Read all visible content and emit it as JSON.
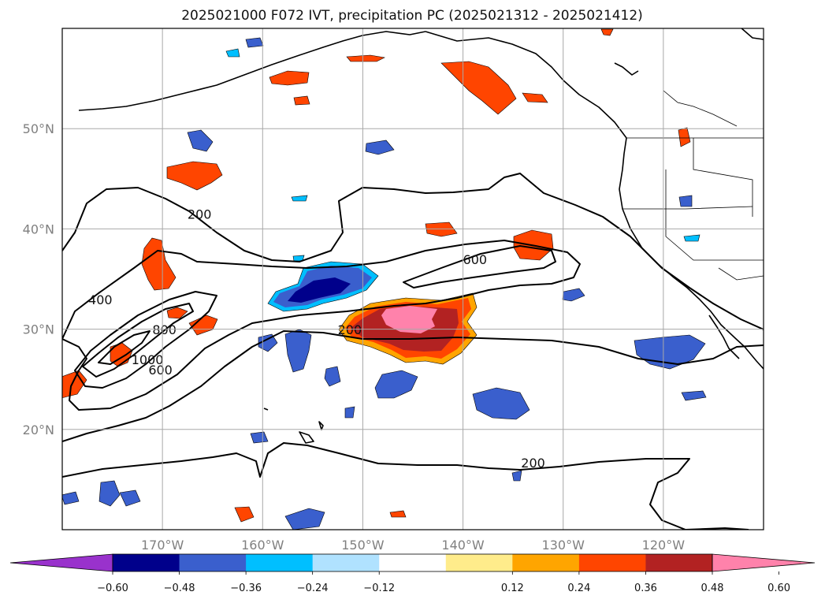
{
  "title": "2025021000 F072 IVT, precipitation PC (2025021312 - 2025021412)",
  "map": {
    "lon_min": -180,
    "lon_max": -110,
    "lat_min": 10,
    "lat_max": 60,
    "lon_ticks": [
      {
        "value": -170,
        "label": "170°W"
      },
      {
        "value": -160,
        "label": "160°W"
      },
      {
        "value": -150,
        "label": "150°W"
      },
      {
        "value": -140,
        "label": "140°W"
      },
      {
        "value": -130,
        "label": "130°W"
      },
      {
        "value": -120,
        "label": "120°W"
      }
    ],
    "lat_ticks": [
      {
        "value": 20,
        "label": "20°N"
      },
      {
        "value": 30,
        "label": "30°N"
      },
      {
        "value": 40,
        "label": "40°N"
      },
      {
        "value": 50,
        "label": "50°N"
      }
    ],
    "grid": true
  },
  "ivt_contour_labels": [
    {
      "text": "200",
      "lon": -166.3,
      "lat": 41.0
    },
    {
      "text": "400",
      "lon": -176.2,
      "lat": 32.5
    },
    {
      "text": "800",
      "lon": -169.8,
      "lat": 29.5
    },
    {
      "text": "1000",
      "lon": -171.5,
      "lat": 26.5
    },
    {
      "text": "600",
      "lon": -170.2,
      "lat": 25.5
    },
    {
      "text": "600",
      "lon": -138.8,
      "lat": 36.5
    },
    {
      "text": "200",
      "lon": -151.3,
      "lat": 29.5
    },
    {
      "text": "200",
      "lon": -133.0,
      "lat": 16.2
    }
  ],
  "colorbar": {
    "ticks": [
      "−0.60",
      "−0.48",
      "−0.36",
      "−0.24",
      "−0.12",
      "0.12",
      "0.24",
      "0.36",
      "0.48",
      "0.60"
    ],
    "colors": [
      "#9932cc",
      "#00008b",
      "#3a5fcd",
      "#00bfff",
      "#b0e2ff",
      "#ffffff",
      "#ffec8b",
      "#ffa500",
      "#ff4500",
      "#b22222",
      "#ff82ab"
    ],
    "extend": "both"
  }
}
